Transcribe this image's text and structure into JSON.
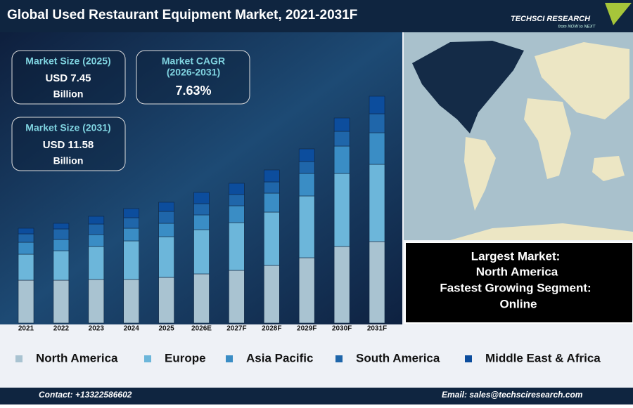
{
  "header": {
    "title": "Global Used Restaurant Equipment Market, 2021-2031F",
    "logo": "TECHSCI RESEARCH",
    "tagline": "from NOW to NEXT"
  },
  "kpis": [
    {
      "label": [
        "Market Size (2025)"
      ],
      "value": "USD 7.45",
      "unit": "Billion"
    },
    {
      "label": [
        "Market CAGR",
        "(2026-2031)"
      ],
      "value": "7.63%"
    },
    {
      "label": [
        "Market Size (2031)"
      ],
      "value": "USD 11.58",
      "unit": "Billion"
    }
  ],
  "info": [
    "Largest Market:",
    "North America",
    "Fastest Growing Segment:",
    "Online"
  ],
  "footer": {
    "contact": "Contact: +13322586602",
    "email": "Email: sales@techsciresearch.com"
  },
  "chart_data": {
    "type": "stacked-bar",
    "categories": [
      "2021",
      "2022",
      "2023",
      "2024",
      "2025",
      "2026E",
      "2027F",
      "2028F",
      "2029F",
      "2030F",
      "2031F"
    ],
    "series": [
      {
        "name": "North America",
        "color": "#a9c3d1",
        "values": [
          6.1,
          6.1,
          6.2,
          6.2,
          6.5,
          7.0,
          7.5,
          8.2,
          9.3,
          10.9,
          11.6
        ]
      },
      {
        "name": "Europe",
        "color": "#6cb6da",
        "values": [
          3.7,
          4.2,
          4.7,
          5.5,
          5.8,
          6.3,
          6.8,
          7.6,
          8.8,
          10.4,
          11.0
        ]
      },
      {
        "name": "Asia Pacific",
        "color": "#3a8dc5",
        "values": [
          1.7,
          1.6,
          1.7,
          1.8,
          1.9,
          2.1,
          2.4,
          2.7,
          3.2,
          3.9,
          4.5
        ]
      },
      {
        "name": "South America",
        "color": "#1f66aa",
        "values": [
          1.2,
          1.5,
          1.5,
          1.5,
          1.7,
          1.6,
          1.6,
          1.6,
          1.7,
          2.1,
          2.7
        ]
      },
      {
        "name": "Middle East & Africa",
        "color": "#0c4d9d",
        "values": [
          0.8,
          0.8,
          1.1,
          1.3,
          1.3,
          1.6,
          1.6,
          1.7,
          1.8,
          1.9,
          2.5
        ]
      }
    ],
    "ylim": [
      0,
      33
    ]
  }
}
